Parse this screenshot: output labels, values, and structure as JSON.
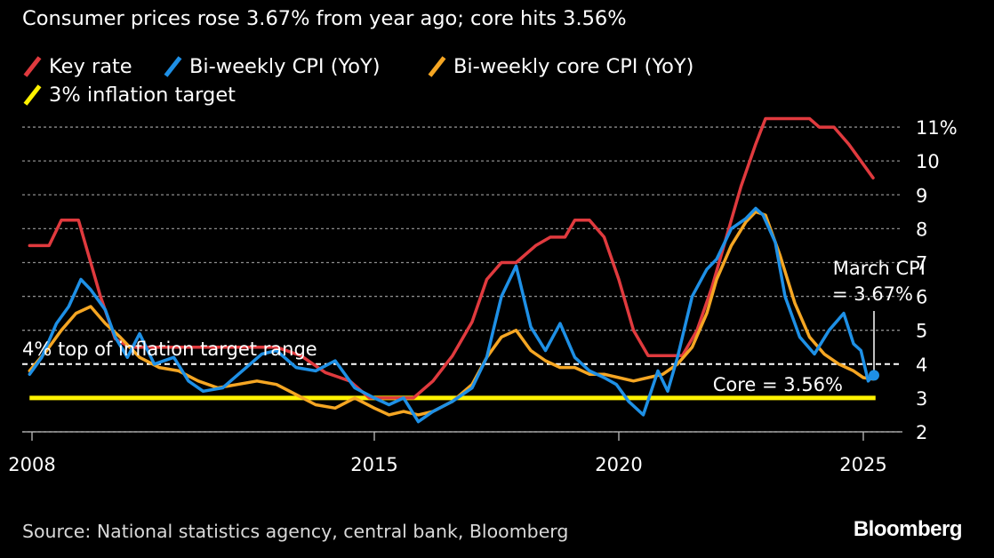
{
  "subtitle": "Consumer prices rose 3.67% from year ago; core hits 3.56%",
  "legend": [
    {
      "label": "Key rate",
      "color": "#e03a3e"
    },
    {
      "label": "Bi-weekly CPI (YoY)",
      "color": "#1e90e6"
    },
    {
      "label": "Bi-weekly core CPI (YoY)",
      "color": "#f5a623"
    },
    {
      "label": "3% inflation target",
      "color": "#fff200"
    }
  ],
  "source": "Source: National statistics agency, central bank, Bloomberg",
  "brand": "Bloomberg",
  "chart_data": {
    "type": "line",
    "y_range": [
      2,
      11.5
    ],
    "x_range": [
      2007.8,
      2025.8
    ],
    "y_ticks": [
      "2",
      "3",
      "4",
      "5",
      "6",
      "7",
      "8",
      "9",
      "10",
      "11%"
    ],
    "y_tick_values": [
      2,
      3,
      4,
      5,
      6,
      7,
      8,
      9,
      10,
      11
    ],
    "x_ticks": [
      "2008",
      "2015",
      "2020",
      "2025"
    ],
    "x_tick_values": [
      2008,
      2015,
      2020,
      2025
    ],
    "grid": true,
    "legend_position": "top-left",
    "reference_lines": [
      {
        "name": "4% top of inflation target range",
        "value": 4,
        "style": "dashed",
        "color": "#ffffff"
      },
      {
        "name": "3% inflation target",
        "value": 3,
        "style": "solid",
        "color": "#fff200"
      }
    ],
    "annotations": [
      {
        "text": "4% top of inflation target range"
      },
      {
        "text": "March CPI"
      },
      {
        "text": "= 3.67%"
      },
      {
        "text": "Core = 3.56%"
      }
    ],
    "series": [
      {
        "name": "Key rate",
        "color": "#e03a3e",
        "x": [
          2007.95,
          2008.35,
          2008.6,
          2008.95,
          2009.1,
          2009.4,
          2009.7,
          2010.0,
          2010.4,
          2011.0,
          2011.5,
          2012.0,
          2012.5,
          2013.0,
          2013.5,
          2014.0,
          2014.5,
          2014.9,
          2015.3,
          2015.8,
          2016.2,
          2016.6,
          2017.0,
          2017.3,
          2017.6,
          2017.9,
          2018.3,
          2018.6,
          2018.9,
          2019.1,
          2019.4,
          2019.7,
          2020.0,
          2020.3,
          2020.6,
          2021.0,
          2021.3,
          2021.6,
          2021.9,
          2022.2,
          2022.5,
          2022.8,
          2023.0,
          2023.3,
          2023.6,
          2023.9,
          2024.1,
          2024.4,
          2024.7,
          2024.95,
          2025.2
        ],
        "y": [
          7.5,
          7.5,
          8.25,
          8.25,
          7.5,
          6.0,
          4.75,
          4.5,
          4.5,
          4.5,
          4.5,
          4.5,
          4.5,
          4.5,
          4.25,
          3.75,
          3.5,
          3.0,
          3.0,
          3.0,
          3.5,
          4.25,
          5.25,
          6.5,
          7.0,
          7.0,
          7.5,
          7.75,
          7.75,
          8.25,
          8.25,
          7.75,
          6.5,
          5.0,
          4.25,
          4.25,
          4.25,
          5.0,
          6.25,
          7.75,
          9.25,
          10.5,
          11.25,
          11.25,
          11.25,
          11.25,
          11.0,
          11.0,
          10.5,
          10.0,
          9.5
        ]
      },
      {
        "name": "Bi-weekly CPI (YoY)",
        "color": "#1e90e6",
        "x": [
          2007.95,
          2008.2,
          2008.5,
          2008.75,
          2009.0,
          2009.2,
          2009.5,
          2009.7,
          2009.95,
          2010.2,
          2010.5,
          2010.9,
          2011.2,
          2011.5,
          2011.9,
          2012.3,
          2012.7,
          2013.0,
          2013.4,
          2013.8,
          2014.2,
          2014.6,
          2015.0,
          2015.3,
          2015.6,
          2015.9,
          2016.2,
          2016.6,
          2017.0,
          2017.3,
          2017.6,
          2017.9,
          2018.2,
          2018.5,
          2018.8,
          2019.1,
          2019.4,
          2019.7,
          2019.95,
          2020.2,
          2020.5,
          2020.8,
          2021.0,
          2021.2,
          2021.5,
          2021.8,
          2022.0,
          2022.3,
          2022.6,
          2022.8,
          2022.95,
          2023.2,
          2023.4,
          2023.7,
          2024.0,
          2024.3,
          2024.6,
          2024.8,
          2024.95,
          2025.1,
          2025.2
        ],
        "y": [
          3.7,
          4.2,
          5.2,
          5.7,
          6.5,
          6.2,
          5.6,
          4.8,
          4.2,
          4.9,
          4.0,
          4.2,
          3.5,
          3.2,
          3.3,
          3.8,
          4.3,
          4.4,
          3.9,
          3.8,
          4.1,
          3.3,
          3.0,
          2.8,
          3.0,
          2.3,
          2.6,
          2.9,
          3.3,
          4.2,
          6.0,
          6.9,
          5.1,
          4.4,
          5.2,
          4.2,
          3.8,
          3.6,
          3.4,
          2.9,
          2.5,
          3.8,
          3.2,
          4.2,
          6.0,
          6.8,
          7.1,
          8.0,
          8.3,
          8.6,
          8.4,
          7.6,
          6.0,
          4.8,
          4.3,
          5.0,
          5.5,
          4.6,
          4.4,
          3.5,
          3.67
        ]
      },
      {
        "name": "Bi-weekly core CPI (YoY)",
        "color": "#f5a623",
        "x": [
          2007.95,
          2008.3,
          2008.6,
          2008.9,
          2009.2,
          2009.5,
          2009.8,
          2010.2,
          2010.6,
          2011.0,
          2011.4,
          2011.8,
          2012.2,
          2012.6,
          2013.0,
          2013.4,
          2013.8,
          2014.2,
          2014.6,
          2015.0,
          2015.3,
          2015.6,
          2015.9,
          2016.2,
          2016.6,
          2017.0,
          2017.3,
          2017.6,
          2017.9,
          2018.2,
          2018.5,
          2018.8,
          2019.1,
          2019.4,
          2019.7,
          2020.0,
          2020.3,
          2020.6,
          2020.9,
          2021.2,
          2021.5,
          2021.8,
          2022.0,
          2022.3,
          2022.6,
          2022.8,
          2023.0,
          2023.3,
          2023.6,
          2023.9,
          2024.2,
          2024.5,
          2024.8,
          2025.0,
          2025.2
        ],
        "y": [
          3.8,
          4.4,
          5.0,
          5.5,
          5.7,
          5.2,
          4.8,
          4.2,
          3.9,
          3.8,
          3.5,
          3.3,
          3.4,
          3.5,
          3.4,
          3.1,
          2.8,
          2.7,
          3.0,
          2.7,
          2.5,
          2.6,
          2.5,
          2.6,
          2.9,
          3.4,
          4.2,
          4.8,
          5.0,
          4.4,
          4.1,
          3.9,
          3.9,
          3.7,
          3.7,
          3.6,
          3.5,
          3.6,
          3.7,
          4.0,
          4.5,
          5.5,
          6.5,
          7.5,
          8.2,
          8.5,
          8.4,
          7.2,
          5.8,
          4.8,
          4.3,
          4.0,
          3.8,
          3.6,
          3.56
        ]
      }
    ],
    "endpoint": {
      "x": 2025.2,
      "y": 3.67,
      "color": "#1e90e6"
    }
  }
}
